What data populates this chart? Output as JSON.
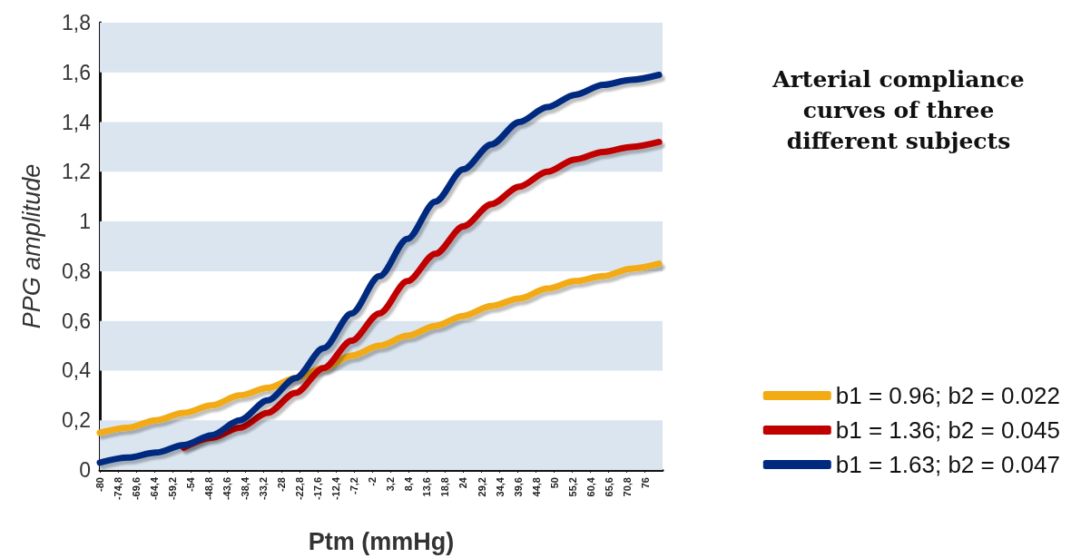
{
  "chart_data": {
    "type": "line",
    "title": "Arterial compliance curves of three different subjects",
    "xlabel": "Ptm (mmHg)",
    "ylabel": "PPG amplitude",
    "x": [
      -80,
      -72,
      -64,
      -56,
      -48,
      -40,
      -32,
      -24,
      -16,
      -8,
      0,
      8,
      16,
      24,
      32,
      40,
      48,
      56,
      64,
      72,
      80
    ],
    "series": [
      {
        "name": "b1 = 0.96; b2 = 0.022",
        "color": "#f2ab12",
        "values": [
          0.15,
          0.17,
          0.2,
          0.23,
          0.26,
          0.3,
          0.33,
          0.37,
          0.41,
          0.46,
          0.5,
          0.54,
          0.58,
          0.62,
          0.66,
          0.69,
          0.73,
          0.76,
          0.78,
          0.81,
          0.83
        ]
      },
      {
        "name": "b1 = 1.36; b2 = 0.045",
        "color": "#c00000",
        "values": [
          null,
          null,
          null,
          0.09,
          0.13,
          0.17,
          0.23,
          0.31,
          0.41,
          0.52,
          0.63,
          0.76,
          0.87,
          0.98,
          1.07,
          1.14,
          1.2,
          1.25,
          1.28,
          1.3,
          1.32
        ]
      },
      {
        "name": "b1 = 1.63; b2 = 0.047",
        "color": "#002a80",
        "values": [
          0.03,
          0.05,
          0.07,
          0.1,
          0.14,
          0.2,
          0.28,
          0.37,
          0.49,
          0.63,
          0.78,
          0.93,
          1.08,
          1.21,
          1.31,
          1.4,
          1.46,
          1.51,
          1.55,
          1.57,
          1.59
        ]
      }
    ],
    "xlim": [
      -80,
      81
    ],
    "xticks": [
      -80,
      {
        "value": -74.8,
        "label": "-74,8"
      },
      {
        "value": -69.6,
        "label": "-69,6"
      },
      {
        "value": -64.4,
        "label": "-64,4"
      },
      {
        "value": -59.2,
        "label": "-59,2"
      },
      -54,
      {
        "value": -48.8,
        "label": "-48,8"
      },
      {
        "value": -43.6,
        "label": "-43,6"
      },
      {
        "value": -38.4,
        "label": "-38,4"
      },
      {
        "value": -33.2,
        "label": "-33,2"
      },
      -28,
      {
        "value": -22.8,
        "label": "-22,8"
      },
      {
        "value": -17.6,
        "label": "-17,6"
      },
      {
        "value": -12.4,
        "label": "-12,4"
      },
      {
        "value": -7.2,
        "label": "-7,2"
      },
      -2,
      {
        "value": 3.2,
        "label": "3,2"
      },
      {
        "value": 8.4,
        "label": "8,4"
      },
      {
        "value": 13.6,
        "label": "13,6"
      },
      {
        "value": 18.8,
        "label": "18,8"
      },
      24,
      {
        "value": 29.2,
        "label": "29,2"
      },
      {
        "value": 34.4,
        "label": "34,4"
      },
      {
        "value": 39.6,
        "label": "39,6"
      },
      {
        "value": 44.8,
        "label": "44,8"
      },
      50,
      {
        "value": 55.2,
        "label": "55,2"
      },
      {
        "value": 60.4,
        "label": "60,4"
      },
      {
        "value": 65.6,
        "label": "65,6"
      },
      {
        "value": 70.8,
        "label": "70,8"
      },
      76
    ],
    "ylim": [
      0,
      1.8
    ],
    "yticks": [
      0,
      {
        "value": 0.2,
        "label": "0,2"
      },
      {
        "value": 0.4,
        "label": "0,4"
      },
      {
        "value": 0.6,
        "label": "0,6"
      },
      {
        "value": 0.8,
        "label": "0,8"
      },
      1,
      {
        "value": 1.2,
        "label": "1,2"
      },
      {
        "value": 1.4,
        "label": "1,4"
      },
      {
        "value": 1.6,
        "label": "1,6"
      },
      {
        "value": 1.8,
        "label": "1,8"
      }
    ],
    "bands": [
      {
        "axis": "y",
        "from": 0,
        "to": 0.2,
        "color": "#dae5f0"
      },
      {
        "axis": "y",
        "from": 0.4,
        "to": 0.6,
        "color": "#dae5f0"
      },
      {
        "axis": "y",
        "from": 0.8,
        "to": 1,
        "color": "#dae5f0"
      },
      {
        "axis": "y",
        "from": 1.2,
        "to": 1.4,
        "color": "#dae5f0"
      },
      {
        "axis": "y",
        "from": 1.6,
        "to": 1.8,
        "color": "#dae5f0"
      }
    ],
    "legend": "right",
    "marker": "none",
    "line_style": "solid"
  }
}
